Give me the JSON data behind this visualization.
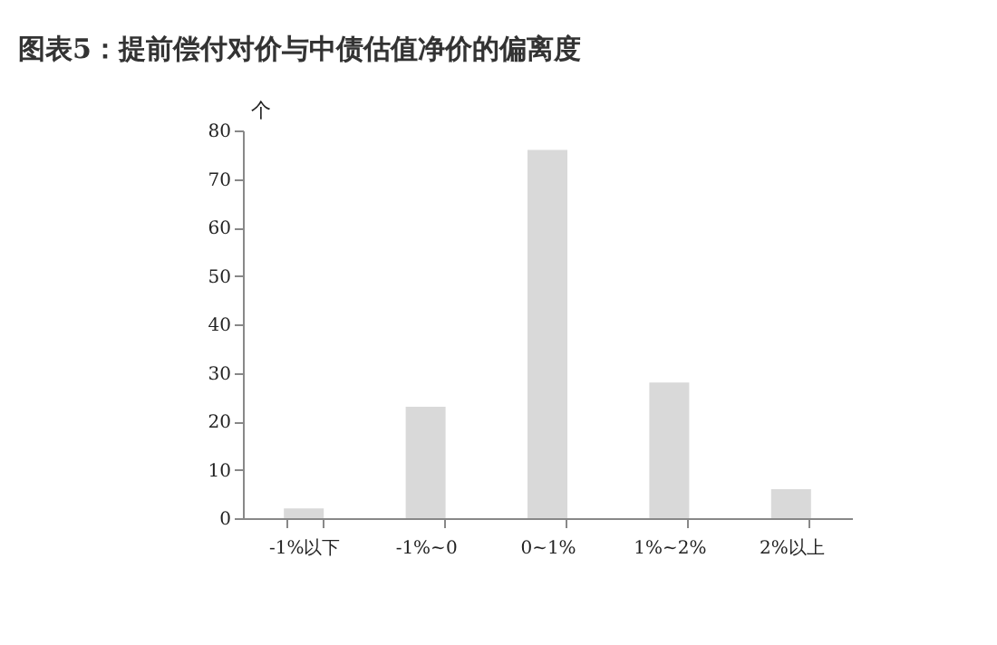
{
  "chart_data": {
    "type": "bar",
    "title": "图表5：提前偿付对价与中债估值净价的偏离度",
    "ylabel": "个",
    "categories": [
      "-1%以下",
      "-1%~0",
      "0~1%",
      "1%~2%",
      "2%以上"
    ],
    "values": [
      2,
      23,
      76,
      28,
      6
    ],
    "color": "#d9d9d9",
    "ylim": [
      0,
      80
    ],
    "yticks": [
      0,
      10,
      20,
      30,
      40,
      50,
      60,
      70,
      80
    ],
    "grid": false
  }
}
